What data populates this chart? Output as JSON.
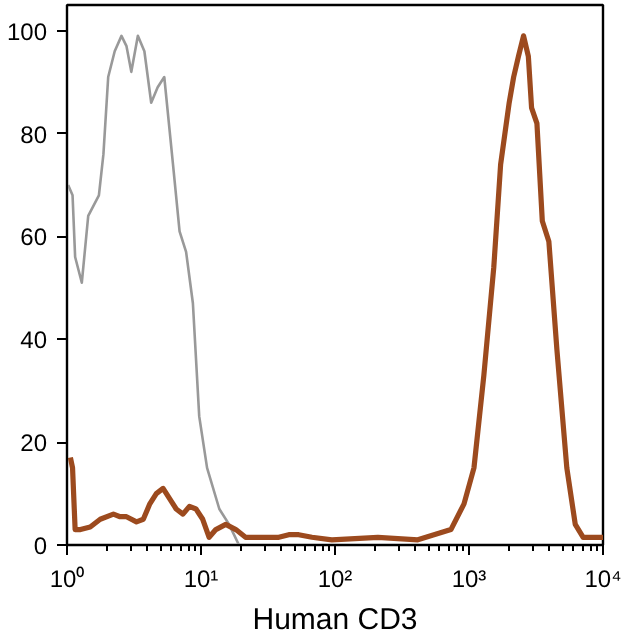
{
  "chart_data": {
    "type": "line",
    "xlabel": "Human CD3",
    "log": "x",
    "grid": false,
    "marker": "none",
    "line_style": "solid",
    "xlim": [
      1,
      10000
    ],
    "ylim": [
      0,
      105
    ],
    "xticks": [
      {
        "value": 1,
        "label": "10⁰"
      },
      {
        "value": 10,
        "label": "10¹"
      },
      {
        "value": 100,
        "label": "10²"
      },
      {
        "value": 1000,
        "label": "10³"
      },
      {
        "value": 10000,
        "label": "10⁴"
      }
    ],
    "yticks": [
      0,
      20,
      40,
      60,
      80,
      100
    ],
    "series": [
      {
        "color": "#999999",
        "x": [
          1.02,
          1.1,
          1.15,
          1.29,
          1.44,
          1.73,
          1.87,
          2.03,
          2.27,
          2.55,
          2.78,
          3.02,
          3.38,
          3.78,
          4.25,
          4.75,
          5.32,
          6.18,
          6.92,
          7.74,
          8.7,
          9.7,
          11.1,
          13.7,
          16.2,
          19.2
        ],
        "values": [
          70,
          68,
          56,
          51,
          64,
          68,
          76,
          91,
          96,
          99,
          97,
          92,
          99,
          96,
          86,
          89,
          91,
          74,
          61,
          57,
          47,
          25,
          15,
          7,
          4,
          0
        ]
      },
      {
        "color": "#9c4a1e",
        "x": [
          1.06,
          1.1,
          1.15,
          1.26,
          1.49,
          1.77,
          2.22,
          2.49,
          2.78,
          3.3,
          3.71,
          4.15,
          4.64,
          5.21,
          5.83,
          6.53,
          7.33,
          8.2,
          9.18,
          10.3,
          11.5,
          12.9,
          15.3,
          18.2,
          21.5,
          30.3,
          38.1,
          45.2,
          53.6,
          67.3,
          94.7,
          209,
          415,
          733,
          918,
          1089,
          1291,
          1531,
          1722,
          1995,
          2154,
          2339,
          2553,
          2773,
          2931,
          3213,
          3524,
          3945,
          4529,
          5370,
          6209,
          7112,
          10000
        ],
        "values": [
          17,
          15,
          3,
          3,
          3.5,
          5,
          6,
          5.5,
          5.5,
          4.5,
          5,
          8,
          10,
          11,
          9,
          7,
          6,
          7.5,
          7,
          5,
          1.5,
          3,
          4,
          3,
          1.5,
          1.5,
          1.5,
          2,
          2,
          1.5,
          1,
          1.5,
          1,
          3,
          8,
          15,
          33,
          54,
          74,
          86,
          91,
          95,
          99,
          95,
          85,
          82,
          63,
          59,
          38,
          15,
          4,
          1.5,
          1.5
        ]
      }
    ]
  }
}
